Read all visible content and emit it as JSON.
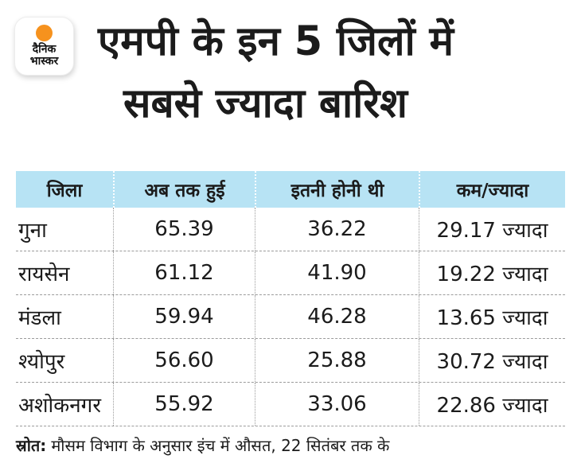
{
  "brand": {
    "logo_line1": "दैनिक",
    "logo_line2": "भास्कर"
  },
  "title": {
    "line1": "एमपी के इन 5 जिलों में",
    "line2": "सबसे ज्यादा बारिश"
  },
  "table": {
    "columns": [
      "जिला",
      "अब तक हुई",
      "इतनी होनी थी",
      "कम/ज्यादा"
    ],
    "rows": [
      {
        "district": "गुना",
        "actual": "65.39",
        "expected": "36.22",
        "diff": "29.17 ज्यादा"
      },
      {
        "district": "रायसेन",
        "actual": "61.12",
        "expected": "41.90",
        "diff": "19.22 ज्यादा"
      },
      {
        "district": "मंडला",
        "actual": "59.94",
        "expected": "46.28",
        "diff": "13.65 ज्यादा"
      },
      {
        "district": "श्योपुर",
        "actual": "56.60",
        "expected": "25.88",
        "diff": "30.72 ज्यादा"
      },
      {
        "district": "अशोकनगर",
        "actual": "55.92",
        "expected": "33.06",
        "diff": "22.86 ज्यादा"
      }
    ]
  },
  "footer": {
    "source_label": "स्रोत:",
    "source_text": "मौसम विभाग के अनुसार इंच में औसत, 22 सितंबर तक के"
  },
  "colors": {
    "header_bg": "#b7e3f4",
    "accent_orange": "#f6921e",
    "text": "#1b1b1b",
    "rule_gray": "#9b9b9b"
  },
  "chart_data": {
    "type": "table",
    "title": "एमपी के इन 5 जिलों में सबसे ज्यादा बारिश",
    "columns": [
      "जिला",
      "अब तक हुई",
      "इतनी होनी थी",
      "कम/ज्यादा"
    ],
    "rows": [
      [
        "गुना",
        65.39,
        36.22,
        "29.17 ज्यादा"
      ],
      [
        "रायसेन",
        61.12,
        41.9,
        "19.22 ज्यादा"
      ],
      [
        "मंडला",
        59.94,
        46.28,
        "13.65 ज्यादा"
      ],
      [
        "श्योपुर",
        56.6,
        25.88,
        "30.72 ज्यादा"
      ],
      [
        "अशोकनगर",
        55.92,
        33.06,
        "22.86 ज्यादा"
      ]
    ],
    "note": "मौसम विभाग के अनुसार इंच में औसत, 22 सितंबर तक के"
  }
}
